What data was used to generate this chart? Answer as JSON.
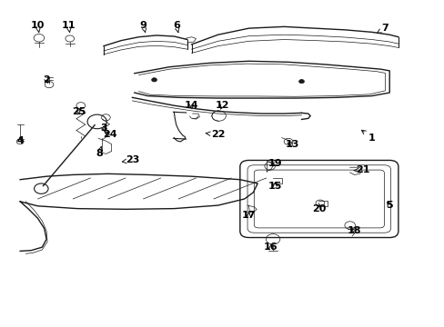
{
  "background_color": "#ffffff",
  "line_color": "#1a1a1a",
  "text_color": "#000000",
  "figsize": [
    4.89,
    3.6
  ],
  "dpi": 100,
  "label_map": {
    "1": [
      0.84,
      0.58,
      0.81,
      0.61
    ],
    "2": [
      0.1,
      0.76,
      0.105,
      0.74
    ],
    "3": [
      0.23,
      0.61,
      0.235,
      0.59
    ],
    "4": [
      0.04,
      0.57,
      0.04,
      0.585
    ],
    "5": [
      0.88,
      0.37,
      0.87,
      0.39
    ],
    "6": [
      0.395,
      0.93,
      0.4,
      0.905
    ],
    "7": [
      0.87,
      0.92,
      0.845,
      0.9
    ],
    "8": [
      0.22,
      0.53,
      0.225,
      0.555
    ],
    "9": [
      0.32,
      0.93,
      0.325,
      0.905
    ],
    "10": [
      0.08,
      0.93,
      0.083,
      0.905
    ],
    "11": [
      0.15,
      0.93,
      0.153,
      0.905
    ],
    "12": [
      0.5,
      0.68,
      0.492,
      0.66
    ],
    "13": [
      0.66,
      0.56,
      0.64,
      0.565
    ],
    "14": [
      0.43,
      0.68,
      0.432,
      0.66
    ],
    "15": [
      0.62,
      0.43,
      0.62,
      0.445
    ],
    "16": [
      0.61,
      0.24,
      0.612,
      0.258
    ],
    "17": [
      0.56,
      0.34,
      0.562,
      0.358
    ],
    "18": [
      0.8,
      0.29,
      0.79,
      0.305
    ],
    "19": [
      0.62,
      0.5,
      0.612,
      0.49
    ],
    "20": [
      0.72,
      0.36,
      0.722,
      0.375
    ],
    "21": [
      0.82,
      0.48,
      0.798,
      0.478
    ],
    "22": [
      0.49,
      0.59,
      0.455,
      0.595
    ],
    "23": [
      0.295,
      0.51,
      0.27,
      0.505
    ],
    "24": [
      0.245,
      0.59,
      0.225,
      0.6
    ],
    "25": [
      0.173,
      0.66,
      0.178,
      0.645
    ]
  }
}
